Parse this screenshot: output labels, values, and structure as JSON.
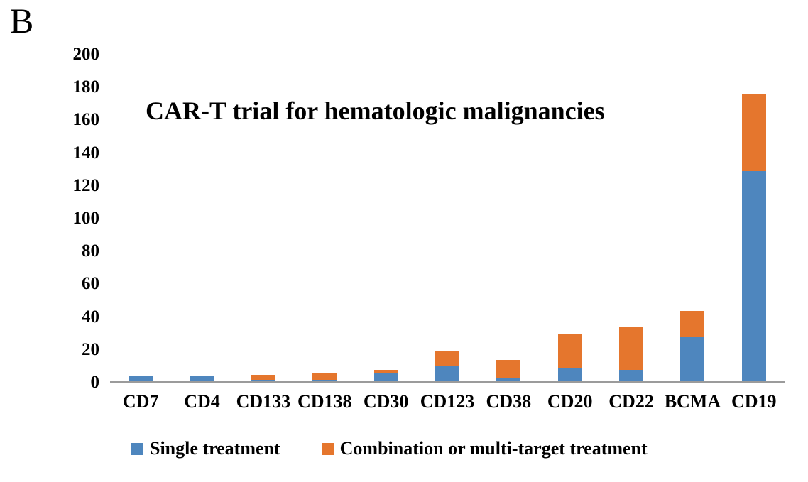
{
  "panel_label": "B",
  "chart_data": {
    "type": "bar",
    "subtype": "stacked-vertical",
    "title": "CAR-T trial for hematologic malignancies",
    "categories": [
      "CD7",
      "CD4",
      "CD133",
      "CD138",
      "CD30",
      "CD123",
      "CD38",
      "CD20",
      "CD22",
      "BCMA",
      "CD19"
    ],
    "series": [
      {
        "name": "Single treatment",
        "color": "#4e86be",
        "values": [
          3,
          3,
          1,
          1,
          5,
          9,
          2,
          8,
          7,
          27,
          128
        ]
      },
      {
        "name": "Combination or multi-target treatment",
        "color": "#e5762d",
        "values": [
          0,
          0,
          3,
          4,
          2,
          9,
          11,
          21,
          26,
          16,
          47
        ]
      }
    ],
    "totals": [
      3,
      3,
      4,
      5,
      7,
      18,
      13,
      29,
      33,
      43,
      175
    ],
    "xlabel": "",
    "ylabel": "",
    "y_axis": {
      "min": 0,
      "max": 200,
      "step": 20,
      "ticks": [
        0,
        20,
        40,
        60,
        80,
        100,
        120,
        140,
        160,
        180,
        200
      ]
    },
    "grid": false,
    "legend_position": "bottom",
    "axis_line_color": "#9b9b9b",
    "text_color": "#000000",
    "background_color": "#ffffff"
  }
}
